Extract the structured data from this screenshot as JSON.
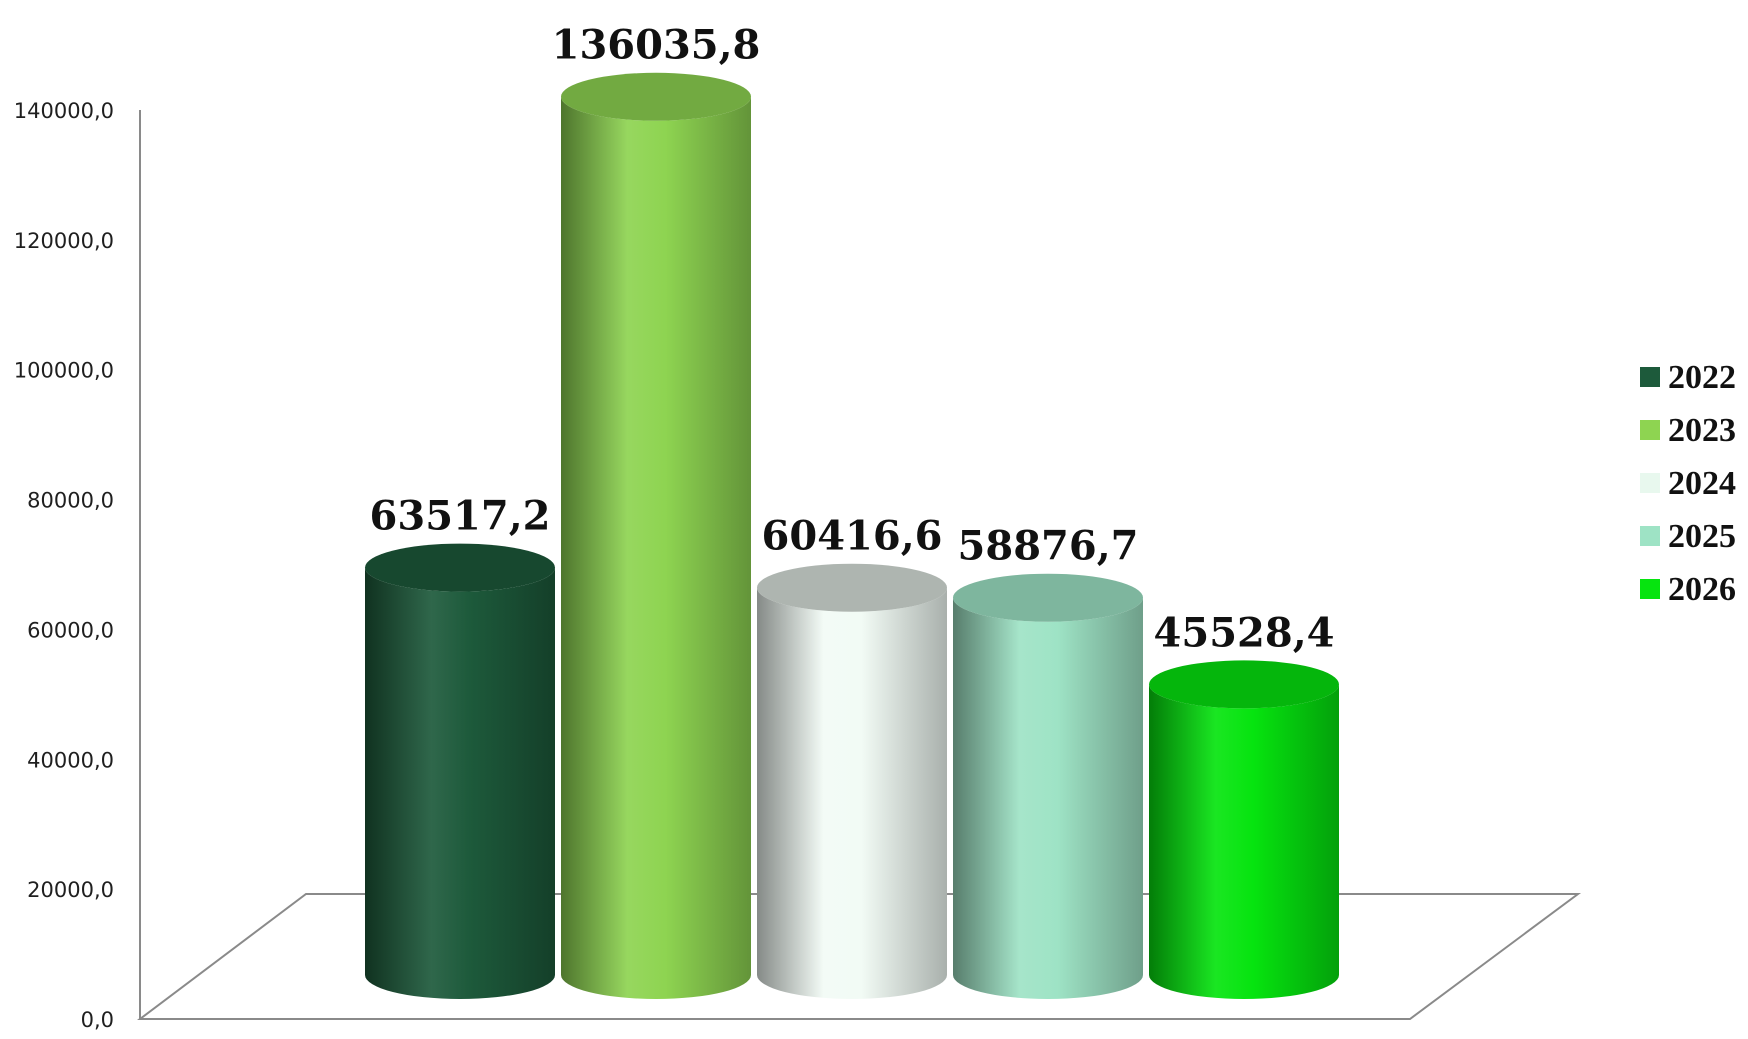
{
  "chart_data": {
    "type": "bar",
    "categories": [
      "2022",
      "2023",
      "2024",
      "2025",
      "2026"
    ],
    "values": [
      63517.2,
      136035.8,
      60416.6,
      58876.7,
      45528.4
    ],
    "value_labels": [
      "63517,2",
      "136035,8",
      "60416,6",
      "58876,7",
      "45528,4"
    ],
    "title": "",
    "xlabel": "",
    "ylabel": "",
    "ylim": [
      0,
      140000
    ],
    "yticks": [
      0,
      20000,
      40000,
      60000,
      80000,
      100000,
      120000,
      140000
    ],
    "ytick_labels": [
      "0,0",
      "20000,0",
      "40000,0",
      "60000,0",
      "80000,0",
      "100000,0",
      "120000,0",
      "140000,0"
    ],
    "grid": false,
    "legend_position": "right",
    "bar_style": "3d-cylinder",
    "colors": [
      "#1d5a3b",
      "#8ed451",
      "#f2fbf5",
      "#9ee3c5",
      "#06e40f"
    ]
  }
}
